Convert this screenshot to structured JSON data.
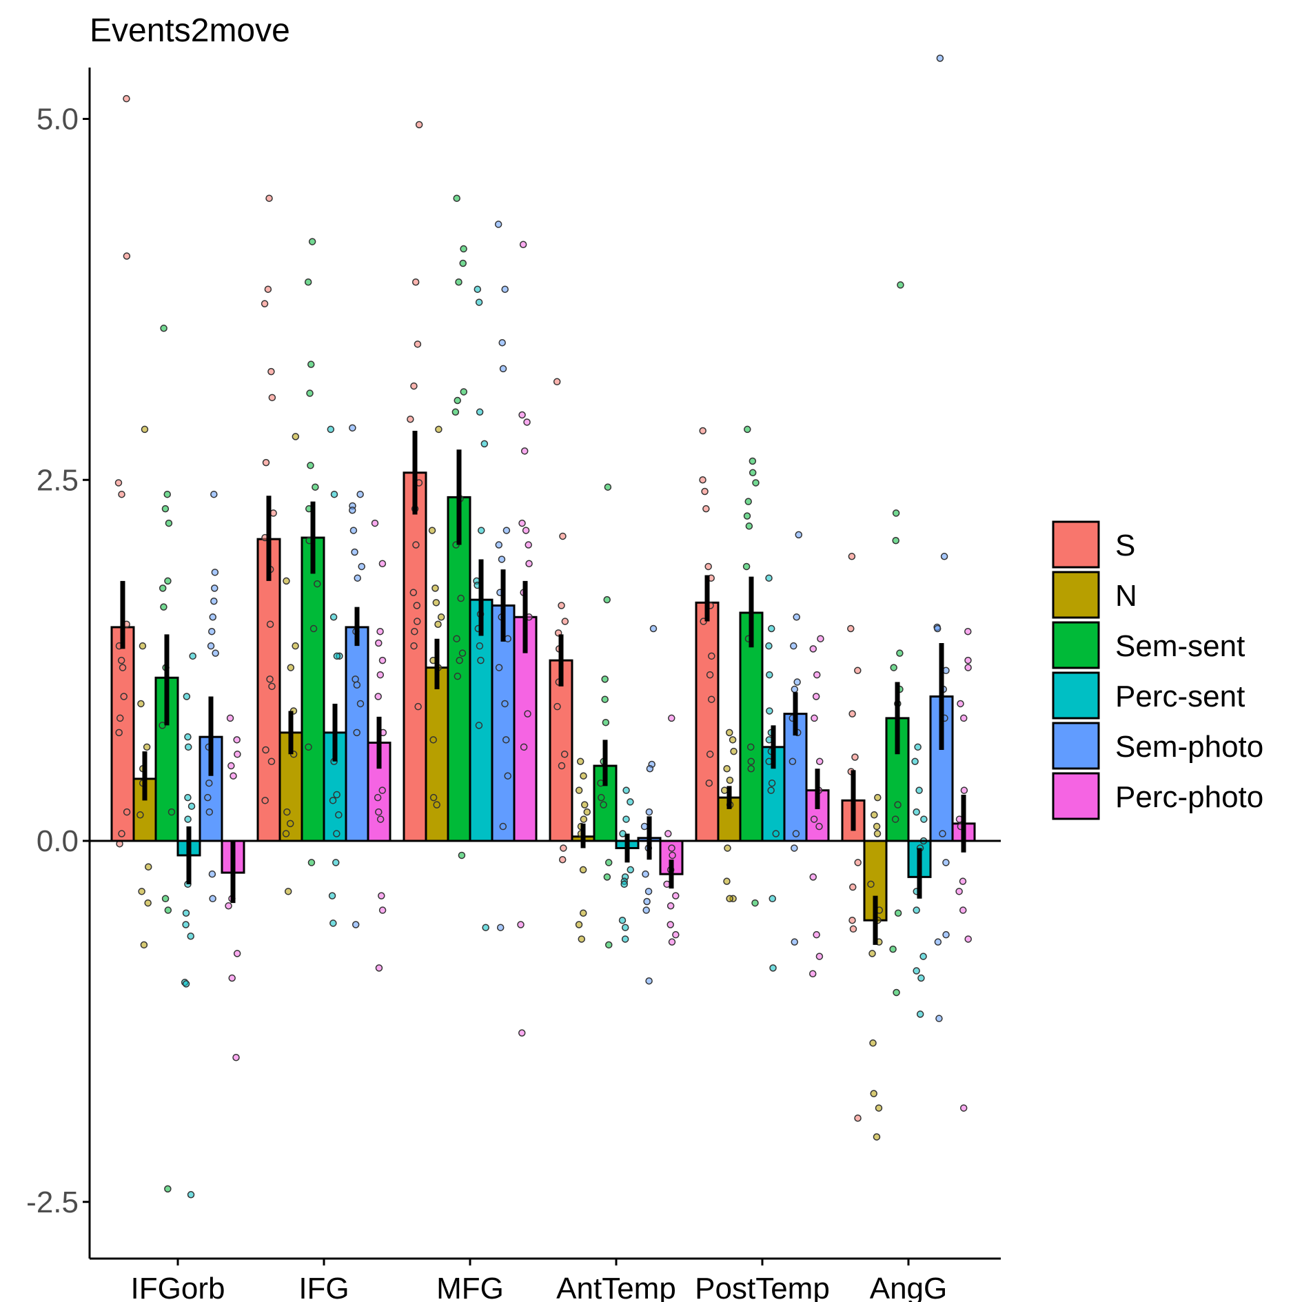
{
  "chart_data": {
    "type": "bar",
    "title": "Events2move",
    "xlabel": "",
    "ylabel": "",
    "ylim": [
      -2.9,
      5.35
    ],
    "yticks": [
      -2.5,
      0.0,
      2.5,
      5.0
    ],
    "ytick_labels": [
      "-2.5",
      "0.0",
      "2.5",
      "5.0"
    ],
    "categories": [
      "IFGorb",
      "IFG",
      "MFG",
      "AntTemp",
      "PostTemp",
      "AngG"
    ],
    "legend_position": "right",
    "grid": false,
    "series": [
      {
        "name": "S",
        "color": "#F8766D",
        "values": [
          1.48,
          2.09,
          2.55,
          1.25,
          1.65,
          0.28
        ],
        "err_low": [
          1.33,
          1.8,
          2.26,
          1.07,
          1.52,
          0.07
        ],
        "err_high": [
          1.8,
          2.39,
          2.84,
          1.43,
          1.84,
          0.49
        ],
        "points": [
          [
            5.14,
            4.05,
            2.48,
            2.4,
            1.5,
            1.35,
            1.25,
            1.2,
            1.0,
            0.85,
            0.75,
            0.2,
            0.05,
            -0.02
          ],
          [
            4.45,
            3.82,
            3.72,
            3.25,
            3.07,
            2.62,
            2.27,
            2.1,
            1.88,
            1.5,
            1.12,
            1.07,
            0.63,
            0.55,
            0.28
          ],
          [
            4.96,
            3.87,
            3.44,
            3.15,
            2.92,
            2.48,
            2.3,
            2.05,
            1.72,
            1.63,
            1.52,
            1.45,
            1.35,
            0.93
          ],
          [
            3.18,
            2.11,
            1.63,
            1.52,
            1.44,
            1.33,
            1.1,
            0.93,
            0.6,
            0.52,
            -0.05,
            -0.13
          ],
          [
            2.84,
            2.5,
            2.42,
            2.3,
            1.9,
            1.82,
            1.63,
            1.52,
            1.28,
            1.15,
            0.98,
            0.6,
            0.4
          ],
          [
            1.97,
            1.47,
            1.18,
            0.88,
            0.58,
            0.48,
            -0.15,
            -0.32,
            -0.55,
            -0.61,
            -1.92
          ]
        ]
      },
      {
        "name": "N",
        "color": "#B79F00",
        "values": [
          0.43,
          0.75,
          1.2,
          0.03,
          0.3,
          -0.55
        ],
        "err_low": [
          0.28,
          0.6,
          1.05,
          -0.05,
          0.22,
          -0.72
        ],
        "err_high": [
          0.62,
          0.9,
          1.4,
          0.12,
          0.38,
          -0.38
        ],
        "points": [
          [
            2.85,
            1.35,
            0.95,
            0.65,
            0.5,
            0.4,
            0.18,
            -0.18,
            -0.35,
            -0.43,
            -0.72
          ],
          [
            2.8,
            1.8,
            1.35,
            1.2,
            0.9,
            0.6,
            0.2,
            0.12,
            0.05,
            -0.35
          ],
          [
            2.85,
            2.15,
            1.75,
            1.65,
            1.55,
            1.5,
            1.25,
            1.2,
            0.7,
            0.3,
            0.25
          ],
          [
            0.55,
            0.45,
            0.35,
            0.25,
            0.2,
            0.15,
            0.1,
            0.05,
            -0.2,
            -0.5,
            -0.58,
            -0.68
          ],
          [
            0.75,
            0.7,
            0.62,
            0.5,
            0.42,
            0.35,
            0.25,
            -0.05,
            -0.28,
            -0.4,
            -0.4
          ],
          [
            0.3,
            0.18,
            0.1,
            0.05,
            -0.3,
            -0.48,
            -0.55,
            -0.7,
            -0.78,
            -1.4,
            -1.75,
            -1.85,
            -2.05
          ]
        ]
      },
      {
        "name": "Sem-sent",
        "color": "#00BA38",
        "values": [
          1.13,
          2.1,
          2.38,
          0.52,
          1.58,
          0.85
        ],
        "err_low": [
          0.8,
          1.85,
          2.05,
          0.38,
          1.34,
          0.6
        ],
        "err_high": [
          1.43,
          2.35,
          2.71,
          0.7,
          1.83,
          1.1
        ],
        "points": [
          [
            3.55,
            2.4,
            2.3,
            2.2,
            1.8,
            1.75,
            1.62,
            1.2,
            0.8,
            0.2,
            -0.4,
            -0.48,
            -2.41
          ],
          [
            4.15,
            3.87,
            3.3,
            3.1,
            2.6,
            2.45,
            2.3,
            2.08,
            1.78,
            1.47,
            0.65,
            -0.15
          ],
          [
            4.45,
            4.1,
            4.0,
            3.87,
            3.11,
            3.05,
            2.97,
            2.37,
            2.05,
            1.68,
            1.4,
            1.3,
            1.25,
            1.14,
            -0.1
          ],
          [
            2.45,
            1.67,
            1.12,
            0.98,
            0.82,
            0.55,
            0.4,
            0.3,
            0.25,
            -0.15,
            -0.25,
            -0.72
          ],
          [
            2.85,
            2.63,
            2.55,
            2.48,
            2.35,
            2.25,
            2.18,
            1.9,
            1.4,
            0.65,
            0.55,
            0.5,
            -0.43
          ],
          [
            3.85,
            2.27,
            2.08,
            1.3,
            1.2,
            1.05,
            0.95,
            0.25,
            0.15,
            -0.5,
            -0.75,
            -1.05
          ]
        ]
      },
      {
        "name": "Perc-sent",
        "color": "#00BFC4",
        "values": [
          -0.1,
          0.75,
          1.67,
          -0.05,
          0.65,
          -0.25
        ],
        "err_low": [
          -0.3,
          0.55,
          1.42,
          -0.15,
          0.5,
          -0.4
        ],
        "err_high": [
          0.1,
          0.95,
          1.95,
          0.05,
          0.8,
          -0.05
        ],
        "points": [
          [
            1.28,
            1.0,
            0.72,
            0.65,
            0.3,
            0.24,
            0.15,
            -0.3,
            -0.5,
            -0.58,
            -0.66,
            -0.98,
            -0.99,
            -2.45
          ],
          [
            2.85,
            2.4,
            1.55,
            1.28,
            1.28,
            0.55,
            0.32,
            0.28,
            0.18,
            0.05,
            -0.15,
            -0.38,
            -0.57
          ],
          [
            3.82,
            3.73,
            2.97,
            2.75,
            2.15,
            1.8,
            1.77,
            1.57,
            1.47,
            1.35,
            1.25,
            0.8,
            -0.6
          ],
          [
            0.35,
            0.27,
            0.15,
            0.05,
            -0.2,
            -0.25,
            -0.28,
            -0.3,
            -0.55,
            -0.6,
            -0.68
          ],
          [
            1.82,
            1.47,
            1.35,
            1.15,
            0.9,
            0.75,
            0.7,
            0.62,
            0.55,
            0.4,
            0.35,
            0.05,
            -0.4,
            -0.88
          ],
          [
            0.65,
            0.55,
            0.35,
            0.2,
            0.15,
            0.0,
            -0.05,
            -0.35,
            -0.48,
            -0.8,
            -0.9,
            -0.95,
            -1.2
          ]
        ]
      },
      {
        "name": "Sem-photo",
        "color": "#619CFF",
        "values": [
          0.72,
          1.48,
          1.63,
          0.02,
          0.88,
          1.0
        ],
        "err_low": [
          0.45,
          1.35,
          1.38,
          -0.13,
          0.73,
          0.63
        ],
        "err_high": [
          1.0,
          1.62,
          1.88,
          0.17,
          1.03,
          1.37
        ],
        "points": [
          [
            2.4,
            1.86,
            1.75,
            1.66,
            1.55,
            1.45,
            1.35,
            1.3,
            0.65,
            0.4,
            0.3,
            0.2,
            -0.23,
            -0.4
          ],
          [
            2.86,
            2.4,
            2.32,
            2.29,
            2.15,
            2.0,
            1.9,
            1.82,
            1.45,
            1.12,
            1.08,
            0.95,
            0.75,
            -0.58
          ],
          [
            4.27,
            3.82,
            3.45,
            3.27,
            2.15,
            2.05,
            1.95,
            1.72,
            1.55,
            1.4,
            1.2,
            0.95,
            0.7,
            0.45,
            0.1,
            -0.6
          ],
          [
            1.47,
            0.53,
            0.5,
            0.2,
            0.1,
            -0.05,
            -0.23,
            -0.35,
            -0.42,
            -0.48,
            -0.97
          ],
          [
            2.12,
            1.55,
            1.35,
            1.1,
            1.05,
            0.85,
            0.75,
            0.55,
            0.05,
            -0.05,
            -0.7
          ],
          [
            5.42,
            1.97,
            1.48,
            1.47,
            1.18,
            1.05,
            0.85,
            0.05,
            -0.15,
            -0.65,
            -0.7,
            -1.23
          ]
        ]
      },
      {
        "name": "Perc-photo",
        "color": "#F564E3",
        "values": [
          -0.22,
          0.68,
          1.55,
          -0.23,
          0.35,
          0.12
        ],
        "err_low": [
          -0.43,
          0.5,
          1.3,
          -0.33,
          0.22,
          -0.08
        ],
        "err_high": [
          0.0,
          0.86,
          1.8,
          -0.13,
          0.5,
          0.32
        ],
        "points": [
          [
            0.85,
            0.7,
            0.6,
            0.52,
            0.45,
            -0.4,
            -0.45,
            -0.78,
            -0.95,
            -1.5
          ],
          [
            2.2,
            1.92,
            1.45,
            1.37,
            1.25,
            1.15,
            1.0,
            0.75,
            0.35,
            0.3,
            0.2,
            0.15,
            -0.38,
            -0.48,
            -0.88
          ],
          [
            4.13,
            2.95,
            2.9,
            2.7,
            2.2,
            2.15,
            2.05,
            1.92,
            1.72,
            1.55,
            0.88,
            0.65,
            -0.58,
            -1.33
          ],
          [
            0.85,
            0.05,
            -0.05,
            -0.1,
            -0.2,
            -0.3,
            -0.38,
            -0.45,
            -0.58,
            -0.65,
            -0.7
          ],
          [
            1.4,
            1.33,
            1.15,
            1.0,
            0.85,
            0.55,
            0.35,
            0.15,
            0.1,
            -0.25,
            -0.65,
            -0.8,
            -0.92
          ],
          [
            1.45,
            1.25,
            1.2,
            0.95,
            0.85,
            0.35,
            0.15,
            0.1,
            -0.28,
            -0.35,
            -0.48,
            -0.68,
            -1.85
          ]
        ]
      }
    ]
  }
}
